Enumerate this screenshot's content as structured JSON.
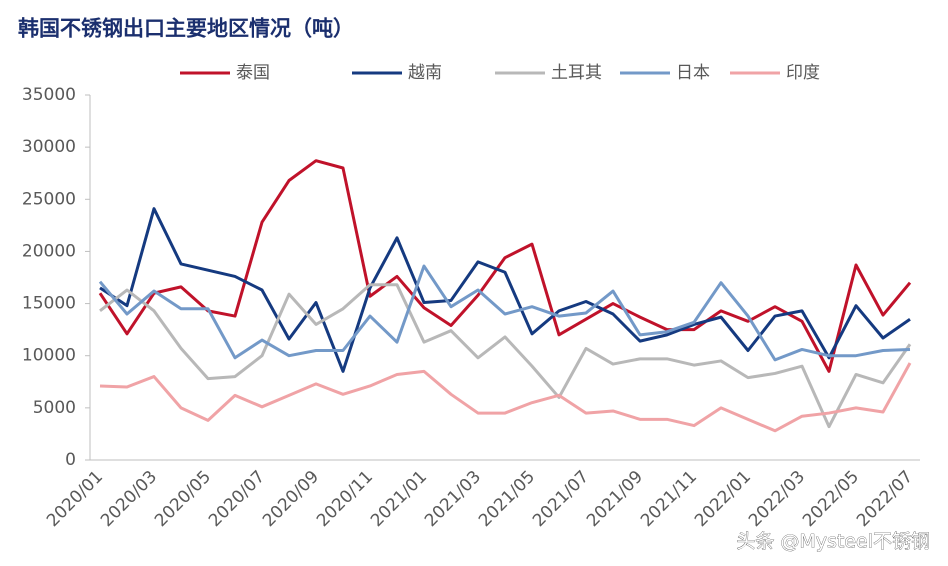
{
  "chart_data": {
    "type": "line",
    "title": "韩国不锈钢出口主要地区情况（吨）",
    "categories": [
      "2020/01",
      null,
      "2020/03",
      null,
      "2020/05",
      null,
      "2020/07",
      null,
      "2020/09",
      null,
      "2020/11",
      null,
      "2021/01",
      null,
      "2021/03",
      null,
      "2021/05",
      null,
      "2021/07",
      null,
      "2021/09",
      null,
      "2021/11",
      null,
      "2022/01",
      null,
      "2022/03",
      null,
      "2022/05",
      null,
      "2022/07"
    ],
    "series": [
      {
        "name": "泰国",
        "color": "#c0122a",
        "values": [
          16000,
          12100,
          16000,
          16600,
          14300,
          13800,
          22800,
          26800,
          28700,
          28000,
          15700,
          17600,
          14600,
          12900,
          15800,
          19400,
          20700,
          12000,
          13500,
          15000,
          13700,
          12500,
          12500,
          14300,
          13300,
          14700,
          13300,
          8500,
          18700,
          13900,
          17000
        ]
      },
      {
        "name": "越南",
        "color": "#153a80",
        "values": [
          16500,
          14800,
          24100,
          18800,
          18200,
          17600,
          16300,
          11600,
          15100,
          8500,
          16500,
          21300,
          15100,
          15300,
          19000,
          18000,
          12100,
          14300,
          15200,
          14000,
          11400,
          12000,
          13000,
          13700,
          10500,
          13800,
          14300,
          9800,
          14800,
          11700,
          13500
        ]
      },
      {
        "name": "土耳其",
        "color": "#b8b8b8",
        "values": [
          14300,
          16300,
          14300,
          10700,
          7800,
          8000,
          10000,
          15900,
          13000,
          14500,
          16800,
          16800,
          11300,
          12400,
          9800,
          11800,
          9000,
          6000,
          10700,
          9200,
          9700,
          9700,
          9100,
          9500,
          7900,
          8300,
          9000,
          3200,
          8200,
          7400,
          11100
        ]
      },
      {
        "name": "日本",
        "color": "#7399c8",
        "values": [
          17100,
          14000,
          16200,
          14500,
          14500,
          9800,
          11500,
          10000,
          10500,
          10500,
          13800,
          11300,
          18600,
          14700,
          16300,
          14000,
          14700,
          13800,
          14100,
          16200,
          12000,
          12300,
          13200,
          17000,
          13800,
          9600,
          10600,
          10000,
          10000,
          10500,
          10600
        ]
      },
      {
        "name": "印度",
        "color": "#f0a3a6",
        "values": [
          7100,
          7000,
          8000,
          5000,
          3800,
          6200,
          5100,
          6200,
          7300,
          6300,
          7100,
          8200,
          8500,
          6300,
          4500,
          4500,
          5500,
          6200,
          4500,
          4700,
          3900,
          3900,
          3300,
          5000,
          3900,
          2800,
          4200,
          4500,
          5000,
          4600,
          9300
        ]
      }
    ],
    "ylim": [
      0,
      35000
    ],
    "yticks": [
      0,
      5000,
      10000,
      15000,
      20000,
      25000,
      30000,
      35000
    ],
    "legend": "top",
    "watermark": "头条 @Mysteel不锈钢"
  }
}
